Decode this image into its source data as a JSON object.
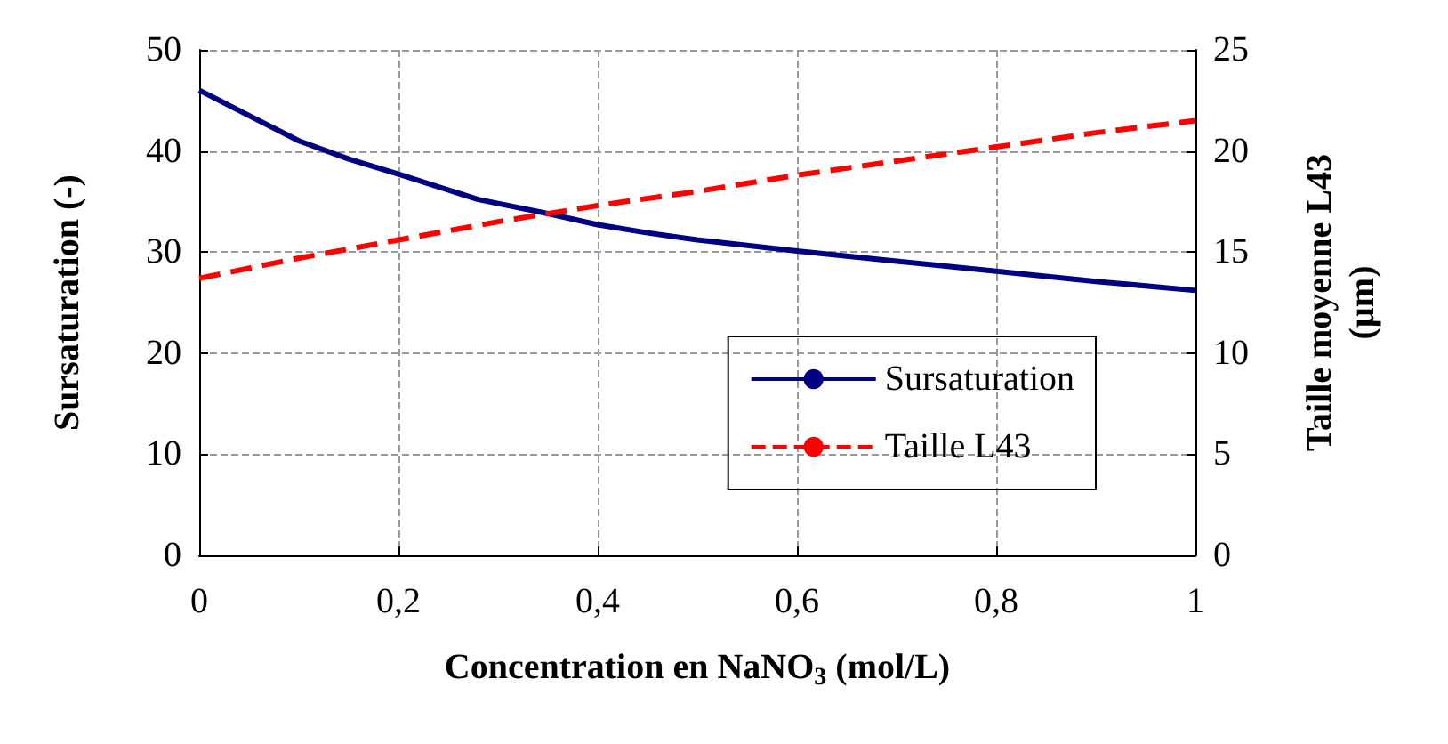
{
  "chart_data": {
    "type": "line",
    "xlabel": "Concentration en NaNO$_{3}$ (mol/L)",
    "ylabel": "Sursaturation (-)",
    "y2label": "Taille moyenne L43 (µm)",
    "xlim": [
      0,
      1
    ],
    "xticks": [
      0,
      {
        "value": 0.2,
        "label": "0,2"
      },
      {
        "value": 0.4,
        "label": "0,4"
      },
      {
        "value": 0.6,
        "label": "0,6"
      },
      {
        "value": 0.8,
        "label": "0,8"
      },
      1
    ],
    "ylim": [
      0,
      50
    ],
    "yticks": [
      0,
      10,
      20,
      30,
      40,
      50
    ],
    "y2lim": [
      0,
      25
    ],
    "y2ticks": [
      0,
      5,
      10,
      15,
      20,
      25
    ],
    "grid": true,
    "legend": "bottom right",
    "marker": "none",
    "series": [
      {
        "name": "Sursaturation",
        "color": "#000080",
        "line_style": "solid",
        "x": [
          0,
          0.05,
          0.1,
          0.15,
          0.2,
          0.28,
          0.35,
          0.4,
          0.45,
          0.5,
          0.6,
          0.7,
          0.8,
          0.9,
          1
        ],
        "values": [
          46,
          43.5,
          41,
          39.2,
          37.7,
          35.2,
          33.8,
          32.7,
          31.9,
          31.2,
          30.1,
          29.1,
          28.1,
          27.1,
          26.2
        ]
      },
      {
        "name": "Taille L43",
        "color": "#ff0000",
        "line_style": "dashed",
        "axis": "y2",
        "x": [
          0,
          0.1,
          0.2,
          0.3,
          0.4,
          0.5,
          0.6,
          0.7,
          0.8,
          0.9,
          1
        ],
        "values": [
          13.7,
          14.7,
          15.6,
          16.5,
          17.3,
          18,
          18.8,
          19.5,
          20.2,
          20.9,
          21.5
        ]
      }
    ]
  }
}
